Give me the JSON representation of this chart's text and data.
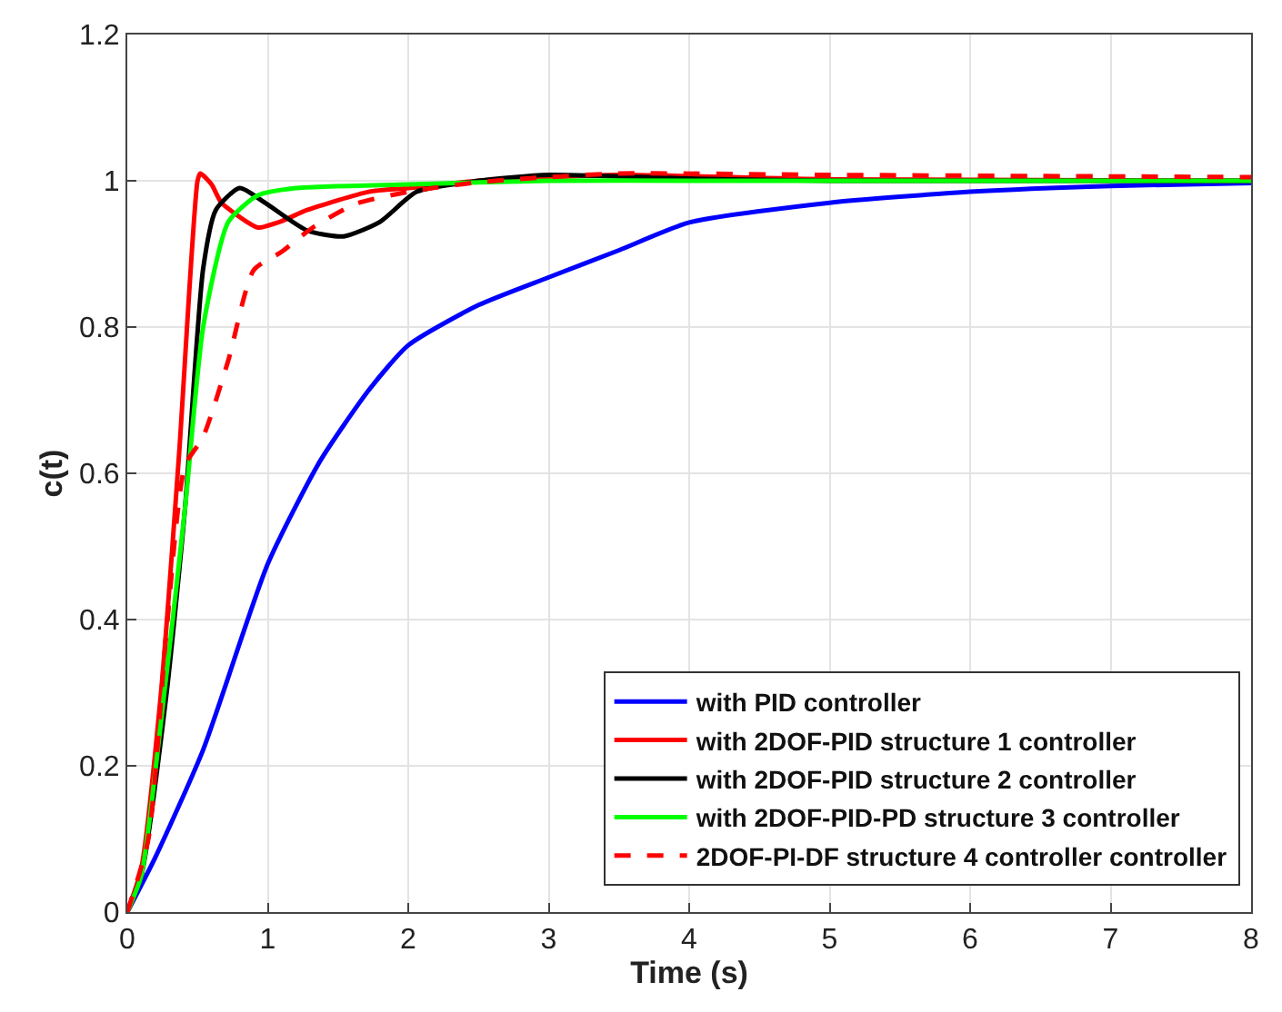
{
  "chart_data": {
    "type": "line",
    "xlabel": "Time (s)",
    "ylabel": "c(t)",
    "xlim": [
      0,
      8
    ],
    "ylim": [
      0,
      1.2
    ],
    "xticks": [
      0,
      1,
      2,
      3,
      4,
      5,
      6,
      7,
      8
    ],
    "yticks": [
      0,
      0.2,
      0.4,
      0.6,
      0.8,
      1,
      1.2
    ],
    "grid": true,
    "legend": "bottom right",
    "series": [
      {
        "name": "with PID controller",
        "color": "#0000ff",
        "line_style": "solid",
        "x": [
          0,
          0.2,
          0.54,
          1.0,
          1.37,
          1.72,
          2.0,
          2.5,
          3.0,
          3.5,
          4.0,
          5.0,
          6.0,
          7.0,
          8.0
        ],
        "values": [
          0,
          0.075,
          0.222,
          0.476,
          0.616,
          0.714,
          0.775,
          0.83,
          0.868,
          0.905,
          0.943,
          0.97,
          0.985,
          0.993,
          0.997
        ]
      },
      {
        "name": "with 2DOF-PID structure 1 controller",
        "color": "#ff0000",
        "line_style": "solid",
        "x": [
          0,
          0.1,
          0.24,
          0.37,
          0.5,
          0.52,
          0.6,
          0.67,
          0.85,
          0.93,
          1.1,
          1.28,
          1.72,
          2.0,
          2.5,
          3.0,
          3.5,
          5.0,
          8.0
        ],
        "values": [
          0,
          0.06,
          0.3,
          0.63,
          1.0,
          1.01,
          0.995,
          0.97,
          0.944,
          0.936,
          0.945,
          0.96,
          0.985,
          0.99,
          1.0,
          1.005,
          1.008,
          1.002,
          1.0
        ]
      },
      {
        "name": "with 2DOF-PID structure 2 controller",
        "color": "#000000",
        "line_style": "solid",
        "x": [
          0,
          0.1,
          0.28,
          0.41,
          0.54,
          0.63,
          0.8,
          0.98,
          1.28,
          1.54,
          1.8,
          2.06,
          2.5,
          3.0,
          4.0,
          5.0,
          8.0
        ],
        "values": [
          0,
          0.05,
          0.3,
          0.55,
          0.88,
          0.96,
          0.99,
          0.97,
          0.932,
          0.924,
          0.944,
          0.985,
          1.0,
          1.008,
          1.003,
          1.0,
          1.0
        ]
      },
      {
        "name": "with 2DOF-PID-PD structure 3 controller",
        "color": "#00ff00",
        "line_style": "solid",
        "x": [
          0,
          0.1,
          0.24,
          0.41,
          0.54,
          0.72,
          0.93,
          1.2,
          2.0,
          3.0,
          4.0,
          8.0
        ],
        "values": [
          0,
          0.05,
          0.26,
          0.55,
          0.8,
          0.944,
          0.98,
          0.99,
          0.995,
          1.0,
          1.0,
          1.0
        ]
      },
      {
        "name": "2DOF-PI-DF structure 4 controller controller",
        "color": "#ff0000",
        "line_style": "dashed",
        "x": [
          0,
          0.15,
          0.28,
          0.41,
          0.54,
          0.72,
          0.9,
          1.1,
          1.32,
          1.62,
          2.0,
          2.5,
          3.0,
          3.5,
          5.0,
          8.0
        ],
        "values": [
          0,
          0.1,
          0.386,
          0.61,
          0.65,
          0.755,
          0.878,
          0.903,
          0.936,
          0.968,
          0.985,
          0.998,
          1.005,
          1.01,
          1.008,
          1.005
        ]
      }
    ]
  }
}
